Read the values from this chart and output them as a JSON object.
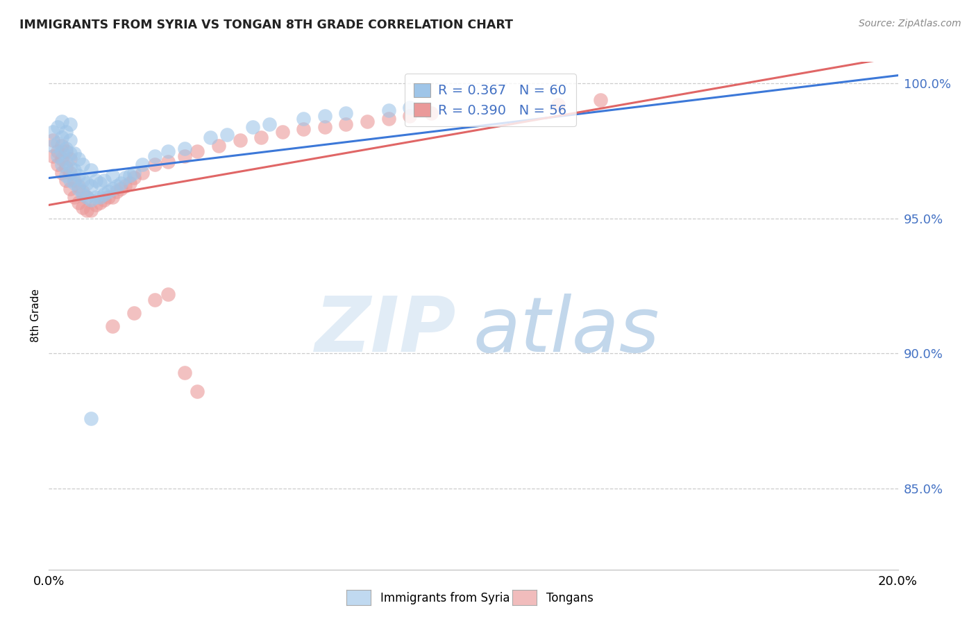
{
  "title": "IMMIGRANTS FROM SYRIA VS TONGAN 8TH GRADE CORRELATION CHART",
  "source": "Source: ZipAtlas.com",
  "ylabel": "8th Grade",
  "xlim": [
    0.0,
    0.2
  ],
  "ylim": [
    0.82,
    1.008
  ],
  "ytick_labels": [
    "85.0%",
    "90.0%",
    "95.0%",
    "100.0%"
  ],
  "ytick_vals": [
    0.85,
    0.9,
    0.95,
    1.0
  ],
  "xtick_labels": [
    "0.0%",
    "",
    "",
    "",
    "",
    "20.0%"
  ],
  "xtick_vals": [
    0.0,
    0.04,
    0.08,
    0.12,
    0.16,
    0.2
  ],
  "legend1_label": "R = 0.367   N = 60",
  "legend2_label": "R = 0.390   N = 56",
  "blue_color": "#9fc5e8",
  "pink_color": "#ea9999",
  "blue_line_color": "#3c78d8",
  "pink_line_color": "#e06666",
  "blue_line_x0": 0.0,
  "blue_line_y0": 0.965,
  "blue_line_x1": 0.2,
  "blue_line_y1": 1.003,
  "pink_line_x0": 0.0,
  "pink_line_y0": 0.955,
  "pink_line_x1": 0.2,
  "pink_line_y1": 1.01,
  "blue_points_x": [
    0.001,
    0.001,
    0.002,
    0.002,
    0.002,
    0.003,
    0.003,
    0.003,
    0.003,
    0.004,
    0.004,
    0.004,
    0.004,
    0.005,
    0.005,
    0.005,
    0.005,
    0.005,
    0.006,
    0.006,
    0.006,
    0.007,
    0.007,
    0.007,
    0.008,
    0.008,
    0.008,
    0.009,
    0.009,
    0.01,
    0.01,
    0.01,
    0.011,
    0.011,
    0.012,
    0.012,
    0.013,
    0.013,
    0.014,
    0.015,
    0.015,
    0.016,
    0.017,
    0.018,
    0.019,
    0.02,
    0.022,
    0.025,
    0.028,
    0.032,
    0.038,
    0.042,
    0.048,
    0.052,
    0.06,
    0.065,
    0.07,
    0.08,
    0.085,
    0.01
  ],
  "blue_points_y": [
    0.977,
    0.982,
    0.973,
    0.978,
    0.984,
    0.97,
    0.975,
    0.98,
    0.986,
    0.966,
    0.971,
    0.976,
    0.982,
    0.964,
    0.969,
    0.974,
    0.979,
    0.985,
    0.963,
    0.968,
    0.974,
    0.961,
    0.966,
    0.972,
    0.959,
    0.964,
    0.97,
    0.958,
    0.963,
    0.957,
    0.962,
    0.968,
    0.958,
    0.964,
    0.958,
    0.963,
    0.959,
    0.964,
    0.96,
    0.961,
    0.966,
    0.962,
    0.963,
    0.965,
    0.966,
    0.967,
    0.97,
    0.973,
    0.975,
    0.976,
    0.98,
    0.981,
    0.984,
    0.985,
    0.987,
    0.988,
    0.989,
    0.99,
    0.991,
    0.876
  ],
  "pink_points_x": [
    0.001,
    0.001,
    0.002,
    0.002,
    0.003,
    0.003,
    0.003,
    0.004,
    0.004,
    0.004,
    0.005,
    0.005,
    0.005,
    0.006,
    0.006,
    0.007,
    0.007,
    0.008,
    0.008,
    0.009,
    0.009,
    0.01,
    0.011,
    0.012,
    0.013,
    0.014,
    0.015,
    0.016,
    0.017,
    0.018,
    0.019,
    0.02,
    0.022,
    0.025,
    0.028,
    0.032,
    0.035,
    0.04,
    0.045,
    0.05,
    0.055,
    0.06,
    0.065,
    0.07,
    0.075,
    0.08,
    0.085,
    0.09,
    0.12,
    0.13,
    0.015,
    0.02,
    0.025,
    0.028,
    0.032,
    0.035
  ],
  "pink_points_y": [
    0.973,
    0.979,
    0.97,
    0.975,
    0.967,
    0.972,
    0.977,
    0.964,
    0.969,
    0.975,
    0.961,
    0.967,
    0.972,
    0.958,
    0.964,
    0.956,
    0.962,
    0.954,
    0.96,
    0.953,
    0.958,
    0.953,
    0.955,
    0.956,
    0.957,
    0.958,
    0.958,
    0.96,
    0.961,
    0.962,
    0.963,
    0.965,
    0.967,
    0.97,
    0.971,
    0.973,
    0.975,
    0.977,
    0.979,
    0.98,
    0.982,
    0.983,
    0.984,
    0.985,
    0.986,
    0.987,
    0.988,
    0.989,
    0.992,
    0.994,
    0.91,
    0.915,
    0.92,
    0.922,
    0.893,
    0.886
  ]
}
